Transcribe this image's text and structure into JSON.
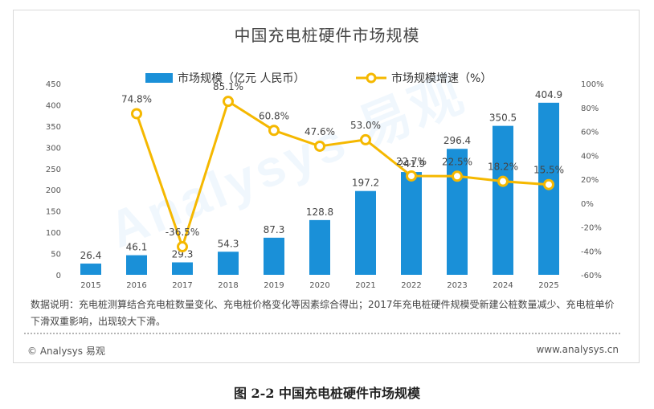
{
  "figure": {
    "title": "中国充电桩硬件市场规模",
    "note": "数据说明：充电桩测算结合充电桩数量变化、充电桩价格变化等因素综合得出；2017年充电桩硬件规模受新建公桩数量减少、充电桩单价下滑双重影响，出现较大下滑。",
    "brand": "© Analysys 易观",
    "website": "www.analysys.cn",
    "caption": "图 2-2  中国充电桩硬件市场规模",
    "watermark": "Analysys 易观"
  },
  "colors": {
    "bar": "#1a90d8",
    "line": "#f5b800",
    "axis_text": "#555555"
  },
  "chart_data": {
    "type": "bar",
    "title": "中国充电桩硬件市场规模",
    "categories": [
      "2015",
      "2016",
      "2017",
      "2018",
      "2019",
      "2020",
      "2021",
      "2022",
      "2023",
      "2024",
      "2025"
    ],
    "series": [
      {
        "name": "市场规模（亿元 人民币）",
        "type": "bar",
        "axis": "left",
        "values": [
          26.4,
          46.1,
          29.3,
          54.3,
          87.3,
          128.8,
          197.2,
          241.9,
          296.4,
          350.5,
          404.9
        ],
        "labels": [
          "26.4",
          "46.1",
          "29.3",
          "54.3",
          "87.3",
          "128.8",
          "197.2",
          "241.9",
          "296.4",
          "350.5",
          "404.9"
        ]
      },
      {
        "name": "市场规模增速（%）",
        "type": "line",
        "axis": "right",
        "values": [
          null,
          74.8,
          -36.5,
          85.1,
          60.8,
          47.6,
          53.0,
          22.7,
          22.5,
          18.2,
          15.5
        ],
        "labels": [
          "",
          "74.8%",
          "-36.5%",
          "85.1%",
          "60.8%",
          "47.6%",
          "53.0%",
          "22.7%",
          "22.5%",
          "18.2%",
          "15.5%"
        ]
      }
    ],
    "y_left": {
      "min": 0,
      "max": 450,
      "ticks": [
        "0",
        "50",
        "100",
        "150",
        "200",
        "250",
        "300",
        "350",
        "400",
        "450"
      ]
    },
    "y_right": {
      "min": -60,
      "max": 100,
      "ticks": [
        "-60%",
        "-40%",
        "-20%",
        "0%",
        "20%",
        "40%",
        "60%",
        "80%",
        "100%"
      ]
    },
    "legend": "top",
    "grid": false
  }
}
